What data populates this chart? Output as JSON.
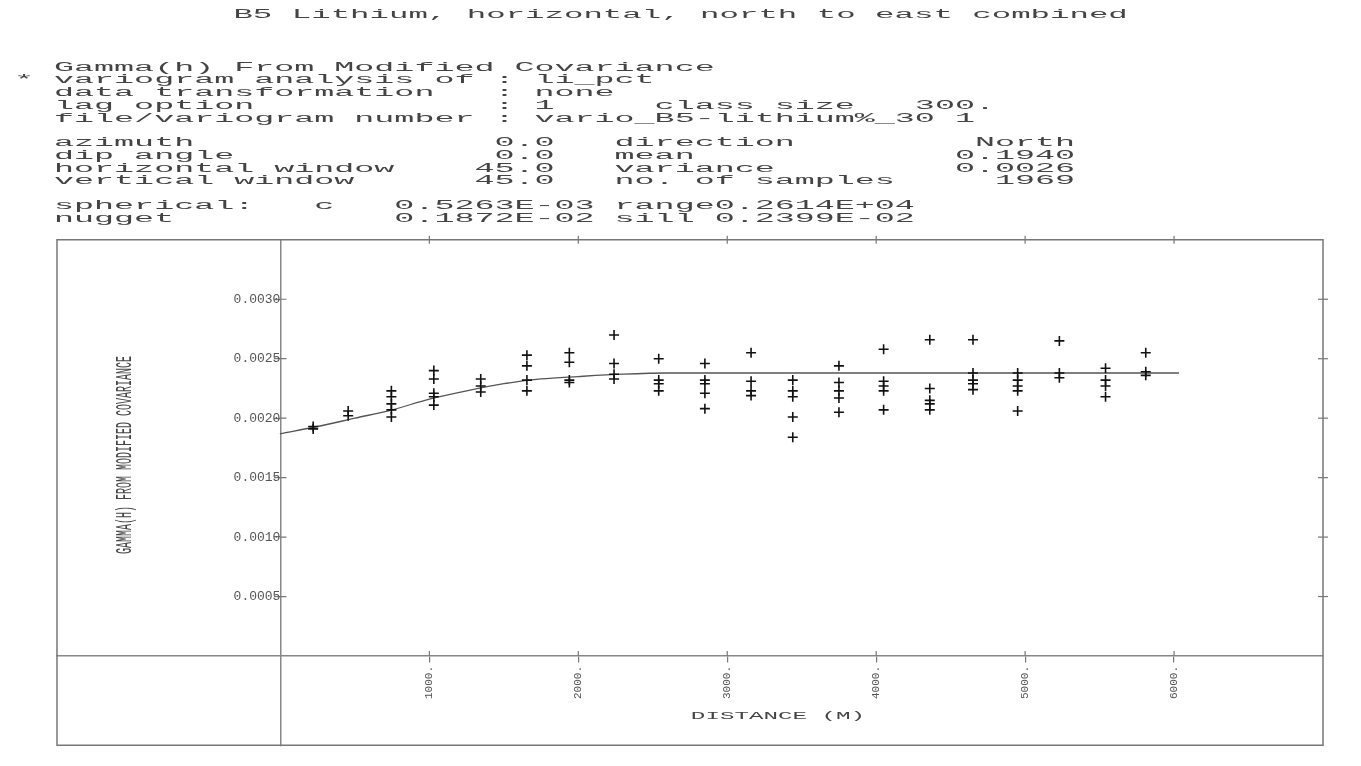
{
  "chart_data": {
    "type": "scatter",
    "title": "B5 Lithium, horizontal, north to east combined",
    "annotations": [
      "  Gamma(h) From Modified Covariance\n* variogram analysis of : li_pct\n  data transformation   : none\n  lag option            : 1     class size   300.\n  file/variogram number : vario_B5-lithium%_30 1",
      "  azimuth               0.0   direction         North\n  dip angle             0.0   mean             0.1940\n  horizontal window    45.0   variance         0.0026\n  vertical window      45.0   no. of samples     1969",
      "  spherical:   c   0.5263E-03 range0.2614E+04\n  nugget           0.1872E-02 sill 0.2399E-02"
    ],
    "xlabel": "DISTANCE (M)",
    "ylabel": "GAMMA(H) FROM MODIFIED COVARIANCE",
    "xlim": [
      -1500,
      7000
    ],
    "ylim": [
      -0.00075,
      0.0035
    ],
    "xticks": [
      {
        "value": 1000,
        "label": "1000."
      },
      {
        "value": 2000,
        "label": "2000."
      },
      {
        "value": 3000,
        "label": "3000."
      },
      {
        "value": 4000,
        "label": "4000."
      },
      {
        "value": 5000,
        "label": "5000."
      },
      {
        "value": 6000,
        "label": "6000."
      }
    ],
    "yticks": [
      0.0005,
      {
        "value": 0.001,
        "label": "0.0010"
      },
      0.0015,
      {
        "value": 0.002,
        "label": "0.0020"
      },
      0.0025,
      {
        "value": 0.003,
        "label": "0.0030"
      }
    ],
    "series": [
      {
        "marker": "cross",
        "color": "#111111",
        "x": [
          220,
          220,
          455,
          455,
          745,
          745,
          745,
          745,
          745,
          1030,
          1030,
          1030,
          1030,
          1030,
          1345,
          1345,
          1345,
          1655,
          1655,
          1655,
          1655,
          1940,
          1940,
          1940,
          1940,
          2240,
          2240,
          2240,
          2240,
          2540,
          2540,
          2540,
          2540,
          2850,
          2850,
          2850,
          2850,
          2850,
          3160,
          3160,
          3160,
          3160,
          3440,
          3440,
          3440,
          3440,
          3440,
          3750,
          3750,
          3750,
          3750,
          3750,
          4050,
          4050,
          4050,
          4050,
          4050,
          4360,
          4360,
          4360,
          4360,
          4360,
          4650,
          4650,
          4650,
          4650,
          4650,
          4950,
          4950,
          4950,
          4950,
          4950,
          5230,
          5230,
          5230,
          5540,
          5540,
          5540,
          5540,
          5810,
          5810,
          5810
        ],
        "values": [
          0.00193,
          0.00191,
          0.00206,
          0.00202,
          0.00223,
          0.00218,
          0.00212,
          0.00207,
          0.00201,
          0.0024,
          0.00233,
          0.00221,
          0.00218,
          0.00211,
          0.00233,
          0.00227,
          0.00222,
          0.00253,
          0.00244,
          0.00232,
          0.00223,
          0.00255,
          0.00247,
          0.00232,
          0.0023,
          0.0027,
          0.00246,
          0.00237,
          0.00233,
          0.0025,
          0.00232,
          0.00229,
          0.00223,
          0.00246,
          0.00232,
          0.00229,
          0.00221,
          0.00208,
          0.00255,
          0.00231,
          0.00223,
          0.00219,
          0.00232,
          0.00223,
          0.00218,
          0.00201,
          0.00184,
          0.00244,
          0.0023,
          0.00223,
          0.00217,
          0.00205,
          0.00258,
          0.00231,
          0.00227,
          0.00223,
          0.00207,
          0.00266,
          0.00225,
          0.00215,
          0.00212,
          0.00207,
          0.00266,
          0.00238,
          0.00232,
          0.00229,
          0.00224,
          0.00238,
          0.00232,
          0.00227,
          0.00223,
          0.00206,
          0.00265,
          0.00238,
          0.00234,
          0.00242,
          0.00232,
          0.00227,
          0.00218,
          0.00255,
          0.00239,
          0.00236
        ]
      },
      {
        "type": "line",
        "marker": "none",
        "color": "#555555",
        "x": [
          0,
          250,
          500,
          750,
          1000,
          1250,
          1500,
          1750,
          2000,
          2300,
          2600,
          6030
        ],
        "values": [
          0.00187,
          0.00193,
          0.002,
          0.00207,
          0.00216,
          0.00223,
          0.00229,
          0.00233,
          0.00235,
          0.00237,
          0.00238,
          0.00238
        ]
      }
    ]
  }
}
